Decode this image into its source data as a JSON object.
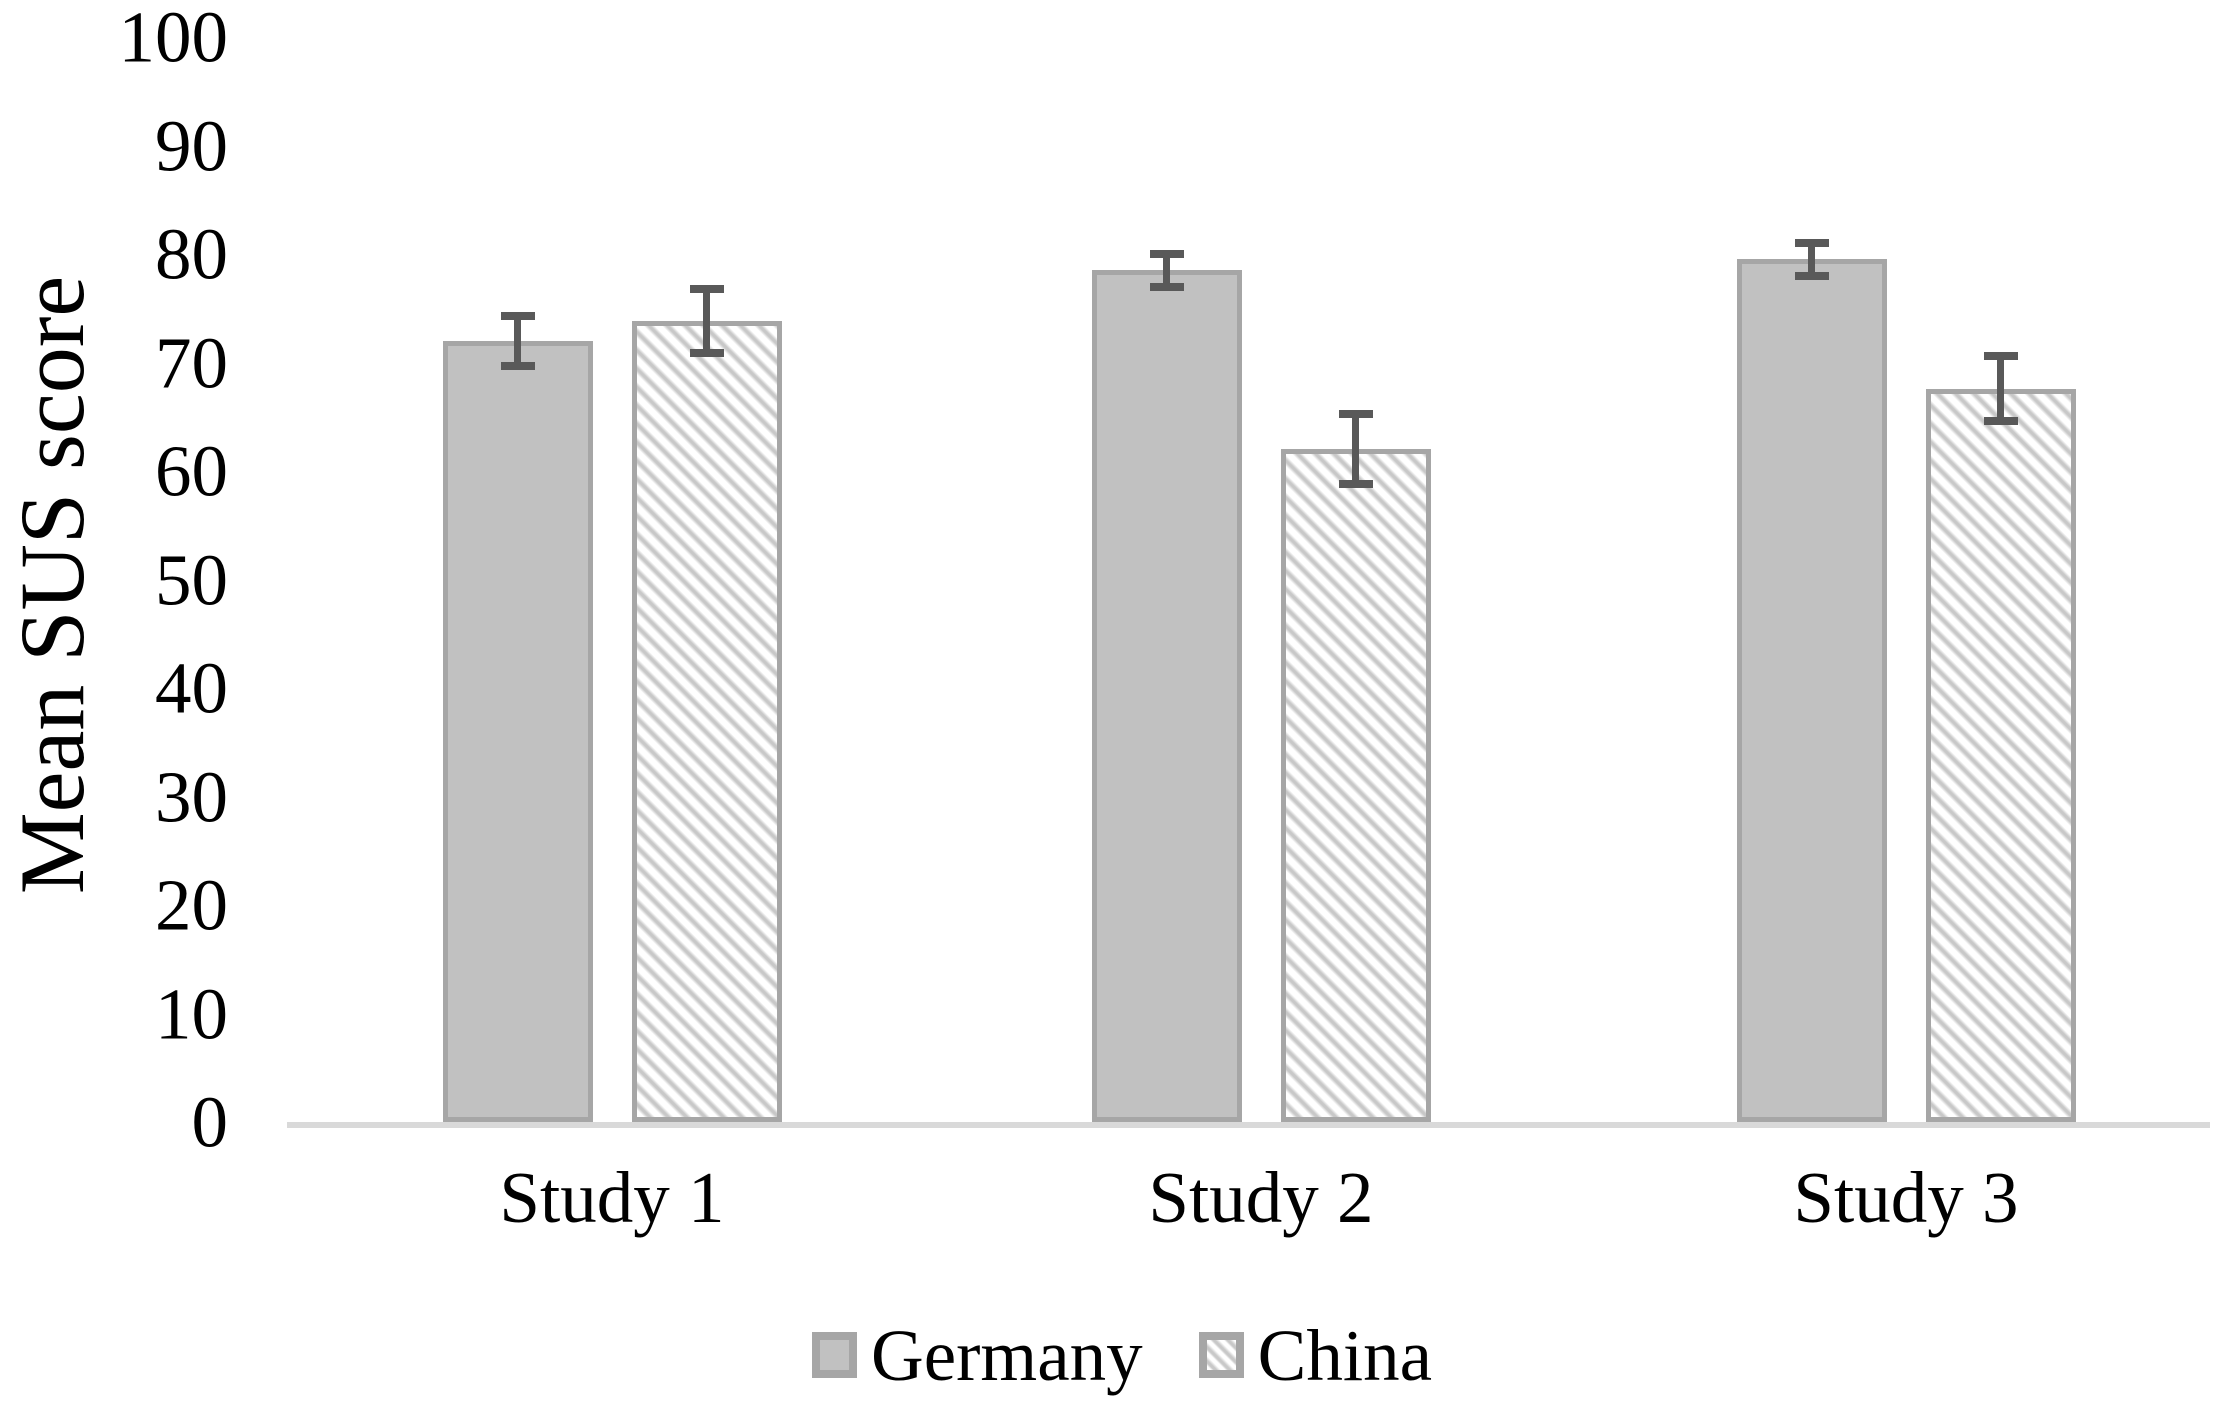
{
  "chart_data": {
    "type": "bar",
    "title": "",
    "xlabel": "",
    "ylabel": "Mean SUS score",
    "categories": [
      "Study 1",
      "Study 2",
      "Study 3"
    ],
    "series": [
      {
        "name": "Germany",
        "style": "solid",
        "values": [
          72.0,
          78.5,
          79.5
        ],
        "errors": [
          2.7,
          1.9,
          1.9
        ]
      },
      {
        "name": "China",
        "style": "hatched",
        "values": [
          73.8,
          62.0,
          67.6
        ],
        "errors": [
          3.3,
          3.6,
          3.4
        ]
      }
    ],
    "error_bars": true,
    "ylim": [
      0,
      100
    ],
    "yticks": [
      0,
      10,
      20,
      30,
      40,
      50,
      60,
      70,
      80,
      90,
      100
    ],
    "grid": false,
    "legend_position": "bottom"
  },
  "colors": {
    "background": "#ffffff",
    "bar_fill": "#c1c1c1",
    "bar_border": "#a6a6a6",
    "hatch_stripe": "#c8c8c8",
    "hatch_background": "#ffffff",
    "error_bar": "#595959",
    "axis_line": "#d9d9d9",
    "text": "#000000"
  }
}
